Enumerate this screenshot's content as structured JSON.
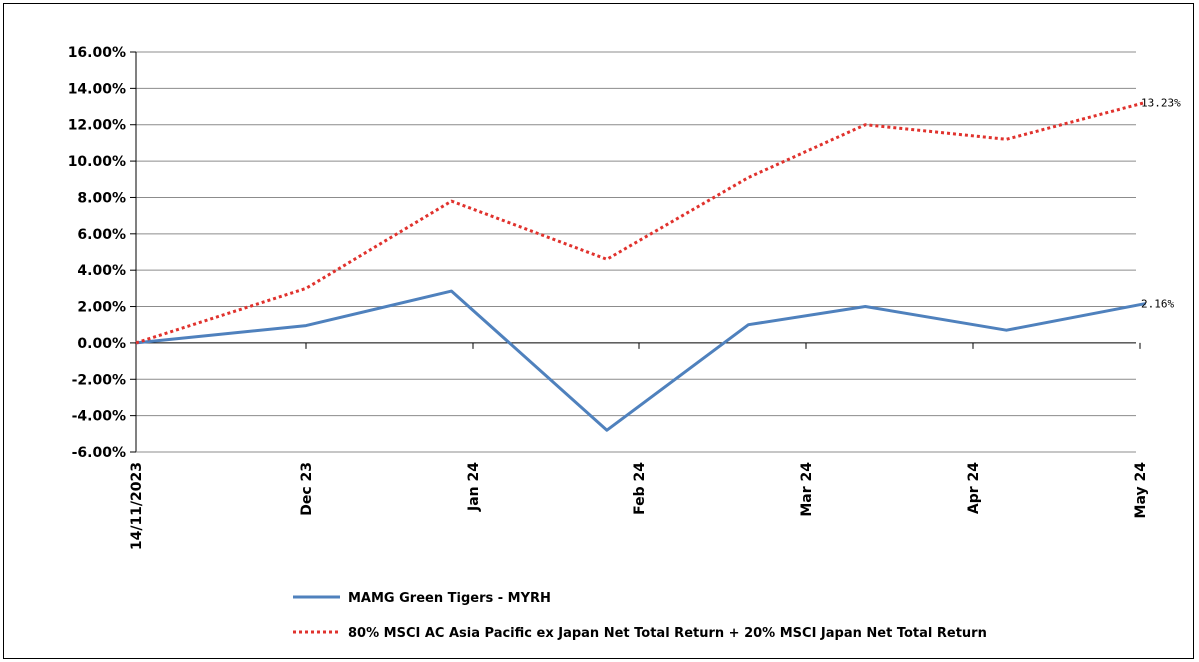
{
  "chart_data": {
    "type": "line",
    "x": [
      "14/11/2023",
      "Dec 23",
      "Jan 24",
      "Feb 24",
      "Mar 24",
      "Apr 24",
      "May 24"
    ],
    "x_ticks": [
      "14/11/2023",
      "Dec 23",
      "Jan 24",
      "Feb 24",
      "Mar 24",
      "Apr 24",
      "May 24"
    ],
    "y_ticks": [
      "16.00%",
      "14.00%",
      "12.00%",
      "10.00%",
      "8.00%",
      "6.00%",
      "4.00%",
      "2.00%",
      "0.00%",
      "-2.00%",
      "-4.00%",
      "-6.00%"
    ],
    "ylim": [
      -6,
      16
    ],
    "grid": true,
    "legend_position": "bottom",
    "series": [
      {
        "name": "MAMG Green Tigers - MYRH",
        "style": "solid",
        "color": "#4F81BD",
        "points": [
          {
            "x": "2023-11-14",
            "y": 0.0
          },
          {
            "x": "2023-12-01",
            "y": 0.95
          },
          {
            "x": "2023-12-28",
            "y": 2.85
          },
          {
            "x": "2024-01-26",
            "y": -4.8
          },
          {
            "x": "2024-02-20",
            "y": 1.0
          },
          {
            "x": "2024-03-12",
            "y": 2.0
          },
          {
            "x": "2024-04-07",
            "y": 0.7
          },
          {
            "x": "2024-05-02",
            "y": 2.16
          }
        ],
        "end_label": "2.16%"
      },
      {
        "name": "80% MSCI AC Asia Pacific ex Japan Net Total Return + 20% MSCI Japan Net Total Return",
        "style": "dotted",
        "color": "#E0322D",
        "points": [
          {
            "x": "2023-11-14",
            "y": 0.0
          },
          {
            "x": "2023-12-01",
            "y": 3.0
          },
          {
            "x": "2023-12-28",
            "y": 7.8
          },
          {
            "x": "2024-01-26",
            "y": 4.6
          },
          {
            "x": "2024-02-20",
            "y": 9.1
          },
          {
            "x": "2024-03-12",
            "y": 12.0
          },
          {
            "x": "2024-04-07",
            "y": 11.2
          },
          {
            "x": "2024-05-02",
            "y": 13.23
          }
        ],
        "end_label": "13.23%"
      }
    ]
  }
}
